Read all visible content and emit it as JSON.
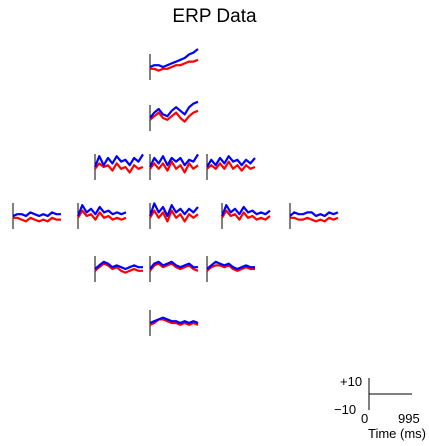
{
  "title": "ERP Data",
  "chart_data": {
    "type": "line",
    "title": "ERP Data",
    "x_range_ms": [
      0,
      995
    ],
    "y_range": [
      -10,
      10
    ],
    "series": [
      {
        "color": "#ff0000"
      },
      {
        "color": "#0000ff"
      }
    ],
    "scale_legend": {
      "y_top_label": "+10",
      "y_bottom_label": "−10",
      "x_start_label": "0",
      "x_end_label": "995",
      "xlabel": "Time (ms)"
    },
    "time_ms": [
      0,
      90,
      180,
      270,
      360,
      450,
      540,
      630,
      720,
      810,
      900,
      995
    ],
    "channels": [
      {
        "id": "row1",
        "blue": [
          0,
          1,
          1,
          0,
          1,
          2,
          3,
          4,
          5,
          7,
          8,
          10
        ],
        "red": [
          -1,
          -1,
          -2,
          -1,
          -1,
          0,
          1,
          1,
          2,
          3,
          3,
          4
        ]
      },
      {
        "id": "row2",
        "blue": [
          0,
          3,
          5,
          2,
          1,
          4,
          6,
          4,
          2,
          6,
          8,
          9
        ],
        "red": [
          -1,
          1,
          3,
          0,
          -1,
          1,
          3,
          0,
          -2,
          1,
          3,
          4
        ]
      },
      {
        "id": "row3-left",
        "blue": [
          0,
          6,
          1,
          5,
          2,
          6,
          3,
          4,
          1,
          5,
          3,
          7
        ],
        "red": [
          -1,
          2,
          0,
          1,
          -2,
          2,
          -1,
          0,
          -3,
          1,
          -1,
          0
        ]
      },
      {
        "id": "row3-mid",
        "blue": [
          0,
          5,
          2,
          6,
          1,
          5,
          3,
          5,
          1,
          4,
          3,
          7
        ],
        "red": [
          -1,
          2,
          -1,
          2,
          -2,
          3,
          -1,
          1,
          -3,
          2,
          -1,
          1
        ]
      },
      {
        "id": "row3-right",
        "blue": [
          0,
          4,
          1,
          5,
          2,
          6,
          3,
          4,
          1,
          4,
          2,
          5
        ],
        "red": [
          -1,
          1,
          -1,
          2,
          -1,
          3,
          -1,
          1,
          -2,
          1,
          -1,
          0
        ]
      },
      {
        "id": "row4-1",
        "blue": [
          0,
          1,
          1,
          0,
          2,
          1,
          0,
          1,
          0,
          2,
          1,
          1
        ],
        "red": [
          -1,
          -1,
          -2,
          -3,
          -1,
          -2,
          -3,
          -2,
          -3,
          -1,
          -2,
          -2
        ]
      },
      {
        "id": "row4-2",
        "blue": [
          0,
          6,
          2,
          4,
          1,
          5,
          2,
          3,
          1,
          2,
          1,
          2
        ],
        "red": [
          -1,
          3,
          0,
          1,
          -2,
          2,
          -1,
          0,
          -2,
          -1,
          -2,
          -1
        ]
      },
      {
        "id": "row4-3",
        "blue": [
          0,
          7,
          2,
          5,
          0,
          6,
          2,
          4,
          1,
          4,
          2,
          5
        ],
        "red": [
          -1,
          3,
          -1,
          2,
          -3,
          3,
          -1,
          1,
          -3,
          1,
          -1,
          1
        ]
      },
      {
        "id": "row4-4",
        "blue": [
          0,
          6,
          2,
          4,
          1,
          5,
          2,
          3,
          1,
          2,
          1,
          3
        ],
        "red": [
          -1,
          3,
          0,
          1,
          -2,
          2,
          -1,
          0,
          -2,
          -1,
          -2,
          0
        ]
      },
      {
        "id": "row4-5",
        "blue": [
          0,
          2,
          1,
          1,
          2,
          2,
          0,
          1,
          0,
          2,
          1,
          2
        ],
        "red": [
          -1,
          -1,
          -2,
          -2,
          -1,
          -2,
          -3,
          -2,
          -3,
          -1,
          -2,
          -1
        ]
      },
      {
        "id": "row5-left",
        "blue": [
          0,
          2,
          4,
          3,
          1,
          2,
          1,
          0,
          1,
          2,
          1,
          1
        ],
        "red": [
          -1,
          1,
          3,
          2,
          0,
          1,
          -1,
          -2,
          -1,
          0,
          -1,
          -1
        ]
      },
      {
        "id": "row5-mid",
        "blue": [
          0,
          3,
          4,
          2,
          3,
          4,
          2,
          1,
          2,
          3,
          1,
          1
        ],
        "red": [
          -1,
          2,
          3,
          1,
          2,
          3,
          1,
          0,
          1,
          2,
          0,
          -1
        ]
      },
      {
        "id": "row5-right",
        "blue": [
          0,
          2,
          4,
          3,
          2,
          3,
          1,
          0,
          1,
          2,
          1,
          1
        ],
        "red": [
          -1,
          1,
          2,
          2,
          1,
          2,
          0,
          -1,
          0,
          1,
          0,
          0
        ]
      },
      {
        "id": "row6",
        "blue": [
          0,
          1,
          2,
          3,
          2,
          1,
          1,
          0,
          1,
          0,
          1,
          0
        ],
        "red": [
          -1,
          0,
          2,
          2,
          1,
          0,
          0,
          -1,
          0,
          -1,
          0,
          -1
        ]
      }
    ]
  }
}
